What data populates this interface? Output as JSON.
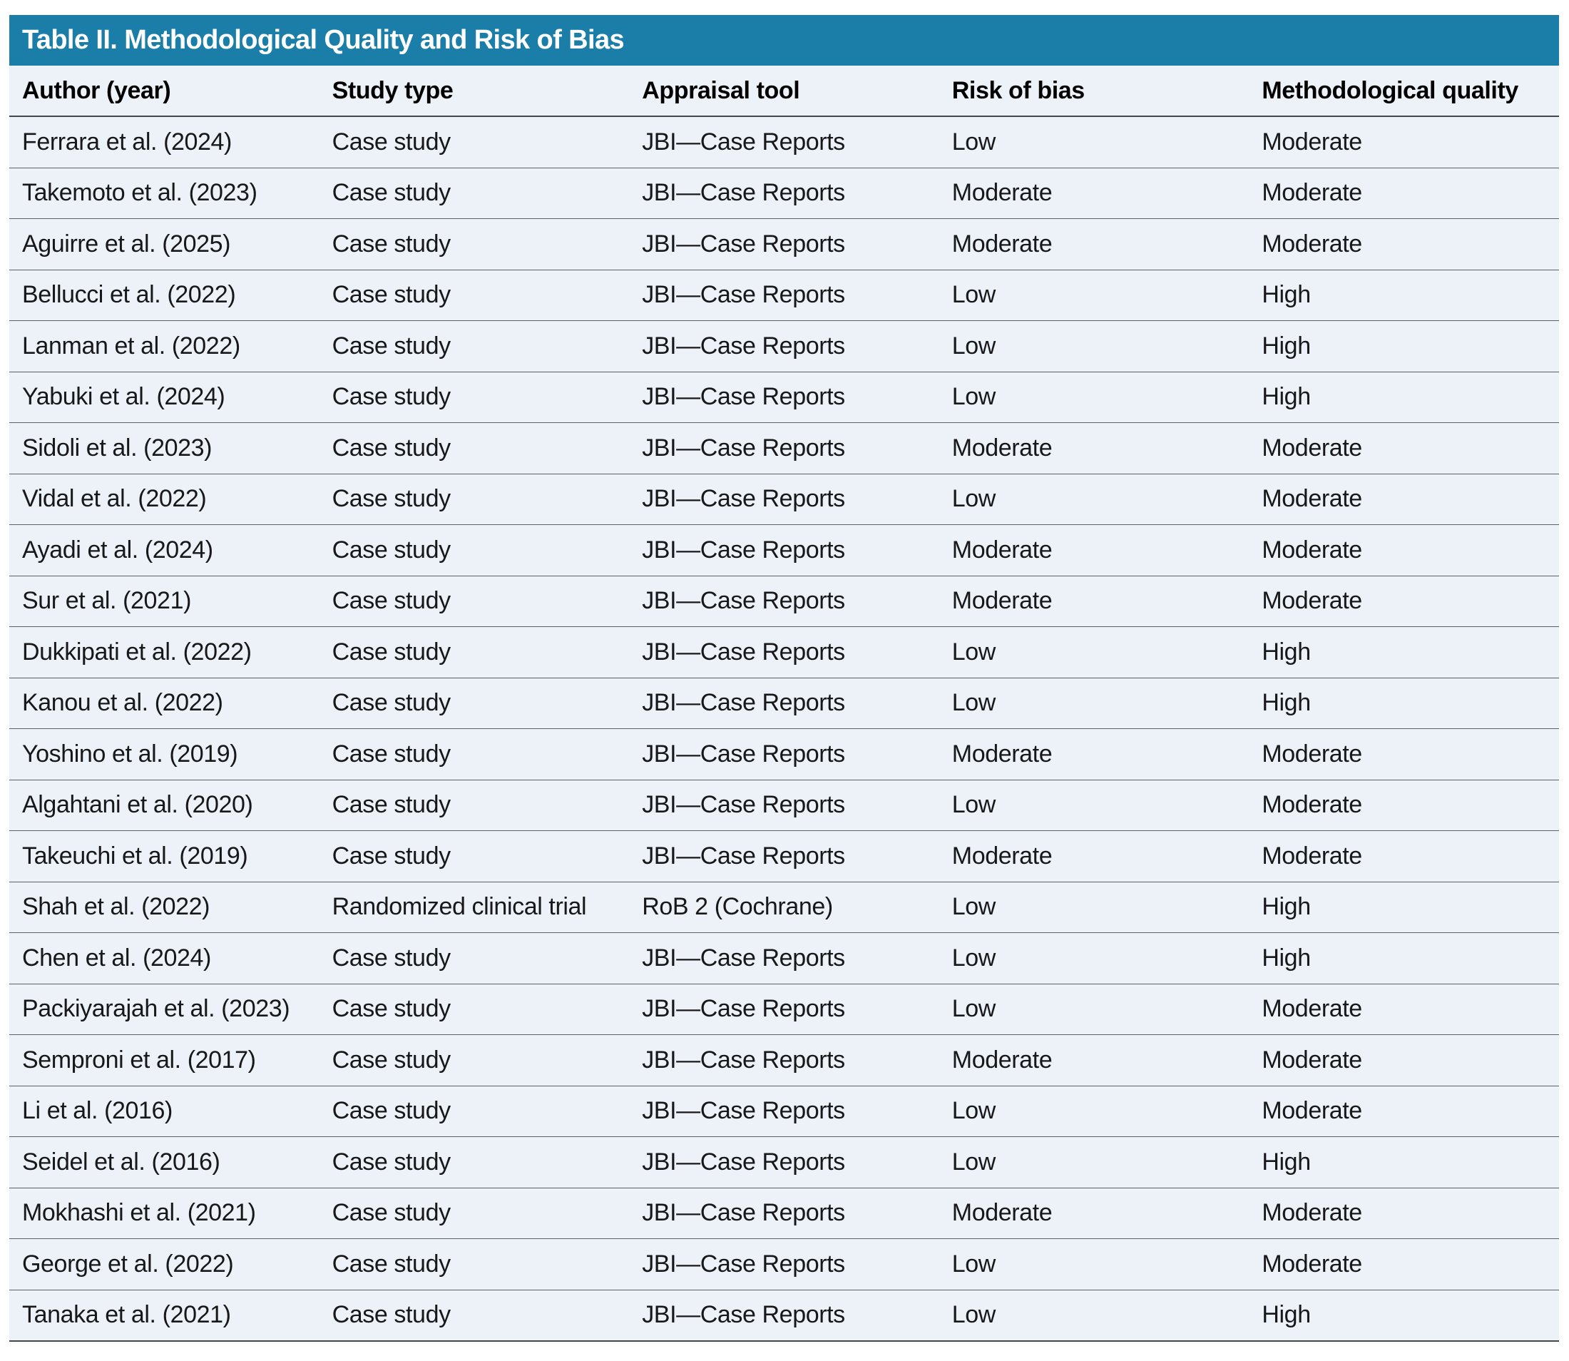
{
  "colors": {
    "page_bg": "#ffffff",
    "title_bar_bg": "#1b7ea8",
    "title_text": "#ffffff",
    "row_bg": "#edf1f8",
    "header_text": "#000000",
    "body_text": "#17181a",
    "divider": "#5d6167",
    "strong_divider": "#43474c"
  },
  "table": {
    "title": "Table II. Methodological Quality and Risk of Bias",
    "columns": [
      "Author (year)",
      "Study type",
      "Appraisal tool",
      "Risk of bias",
      "Methodological quality"
    ],
    "rows": [
      {
        "author": "Ferrara et al. (2024)",
        "study_type": "Case study",
        "appraisal_tool": "JBI—Case Reports",
        "risk_of_bias": "Low",
        "methodological_quality": "Moderate"
      },
      {
        "author": "Takemoto et al. (2023)",
        "study_type": "Case study",
        "appraisal_tool": "JBI—Case Reports",
        "risk_of_bias": "Moderate",
        "methodological_quality": "Moderate"
      },
      {
        "author": "Aguirre et al. (2025)",
        "study_type": "Case study",
        "appraisal_tool": "JBI—Case Reports",
        "risk_of_bias": "Moderate",
        "methodological_quality": "Moderate"
      },
      {
        "author": "Bellucci et al. (2022)",
        "study_type": "Case study",
        "appraisal_tool": "JBI—Case Reports",
        "risk_of_bias": "Low",
        "methodological_quality": "High"
      },
      {
        "author": "Lanman et al. (2022)",
        "study_type": "Case study",
        "appraisal_tool": "JBI—Case Reports",
        "risk_of_bias": "Low",
        "methodological_quality": "High"
      },
      {
        "author": "Yabuki et al. (2024)",
        "study_type": "Case study",
        "appraisal_tool": "JBI—Case Reports",
        "risk_of_bias": "Low",
        "methodological_quality": "High"
      },
      {
        "author": "Sidoli et al. (2023)",
        "study_type": "Case study",
        "appraisal_tool": "JBI—Case Reports",
        "risk_of_bias": "Moderate",
        "methodological_quality": "Moderate"
      },
      {
        "author": "Vidal et al. (2022)",
        "study_type": "Case study",
        "appraisal_tool": "JBI—Case Reports",
        "risk_of_bias": "Low",
        "methodological_quality": "Moderate"
      },
      {
        "author": "Ayadi et al. (2024)",
        "study_type": "Case study",
        "appraisal_tool": "JBI—Case Reports",
        "risk_of_bias": "Moderate",
        "methodological_quality": "Moderate"
      },
      {
        "author": "Sur et al. (2021)",
        "study_type": "Case study",
        "appraisal_tool": "JBI—Case Reports",
        "risk_of_bias": "Moderate",
        "methodological_quality": "Moderate"
      },
      {
        "author": "Dukkipati et al. (2022)",
        "study_type": "Case study",
        "appraisal_tool": "JBI—Case Reports",
        "risk_of_bias": "Low",
        "methodological_quality": "High"
      },
      {
        "author": "Kanou et al. (2022)",
        "study_type": "Case study",
        "appraisal_tool": "JBI—Case Reports",
        "risk_of_bias": "Low",
        "methodological_quality": "High"
      },
      {
        "author": "Yoshino et al. (2019)",
        "study_type": "Case study",
        "appraisal_tool": "JBI—Case Reports",
        "risk_of_bias": "Moderate",
        "methodological_quality": "Moderate"
      },
      {
        "author": "Algahtani et al. (2020)",
        "study_type": "Case study",
        "appraisal_tool": "JBI—Case Reports",
        "risk_of_bias": "Low",
        "methodological_quality": "Moderate"
      },
      {
        "author": "Takeuchi et al. (2019)",
        "study_type": "Case study",
        "appraisal_tool": "JBI—Case Reports",
        "risk_of_bias": "Moderate",
        "methodological_quality": "Moderate"
      },
      {
        "author": "Shah et al. (2022)",
        "study_type": "Randomized clinical trial",
        "appraisal_tool": "RoB 2 (Cochrane)",
        "risk_of_bias": "Low",
        "methodological_quality": "High"
      },
      {
        "author": "Chen et al. (2024)",
        "study_type": "Case study",
        "appraisal_tool": "JBI—Case Reports",
        "risk_of_bias": "Low",
        "methodological_quality": "High"
      },
      {
        "author": "Packiyarajah et al. (2023)",
        "study_type": "Case study",
        "appraisal_tool": "JBI—Case Reports",
        "risk_of_bias": "Low",
        "methodological_quality": "Moderate"
      },
      {
        "author": "Semproni et al. (2017)",
        "study_type": "Case study",
        "appraisal_tool": "JBI—Case Reports",
        "risk_of_bias": "Moderate",
        "methodological_quality": "Moderate"
      },
      {
        "author": "Li et al. (2016)",
        "study_type": "Case study",
        "appraisal_tool": "JBI—Case Reports",
        "risk_of_bias": "Low",
        "methodological_quality": "Moderate"
      },
      {
        "author": "Seidel et al. (2016)",
        "study_type": "Case study",
        "appraisal_tool": "JBI—Case Reports",
        "risk_of_bias": "Low",
        "methodological_quality": "High"
      },
      {
        "author": "Mokhashi et al. (2021)",
        "study_type": "Case study",
        "appraisal_tool": "JBI—Case Reports",
        "risk_of_bias": "Moderate",
        "methodological_quality": "Moderate"
      },
      {
        "author": "George et al. (2022)",
        "study_type": "Case study",
        "appraisal_tool": "JBI—Case Reports",
        "risk_of_bias": "Low",
        "methodological_quality": "Moderate"
      },
      {
        "author": "Tanaka et al. (2021)",
        "study_type": "Case study",
        "appraisal_tool": "JBI—Case Reports",
        "risk_of_bias": "Low",
        "methodological_quality": "High"
      }
    ]
  }
}
